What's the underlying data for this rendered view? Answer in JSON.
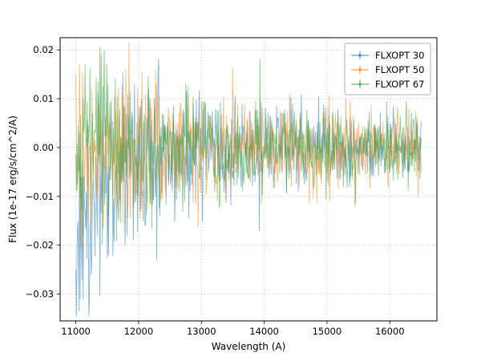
{
  "figure": {
    "background": "#ffffff"
  },
  "chart_data": {
    "type": "line",
    "title": "",
    "xlabel": "Wavelength (A)",
    "ylabel": "Flux (1e-17 erg/s/cm^2/A)",
    "xlim": [
      10750,
      16750
    ],
    "ylim": [
      -0.0355,
      0.0225
    ],
    "xticks": [
      11000,
      12000,
      13000,
      14000,
      15000,
      16000
    ],
    "yticks": [
      -0.03,
      -0.02,
      -0.01,
      0.0,
      0.01,
      0.02
    ],
    "grid": true,
    "grid_style": "dotted",
    "grid_color": "#b0b0b0",
    "legend_position": "upper right",
    "x_start": 11000,
    "x_end": 16500,
    "n_points": 560,
    "series": [
      {
        "name": "FLXOPT 30",
        "color": "#1f77b4",
        "seed": 11,
        "amp_start": 0.01,
        "amp_end": 0.003,
        "decay": 2.6,
        "neg_bias": 0.012,
        "spikes": [
          {
            "x": 11050,
            "y": -0.0335
          },
          {
            "x": 11100,
            "y": -0.027
          },
          {
            "x": 11250,
            "y": -0.026
          },
          {
            "x": 11500,
            "y": -0.0225
          },
          {
            "x": 12100,
            "y": -0.016
          },
          {
            "x": 12800,
            "y": -0.0145
          },
          {
            "x": 11350,
            "y": 0.011
          }
        ]
      },
      {
        "name": "FLXOPT 50",
        "color": "#ff7f0e",
        "seed": 52,
        "amp_start": 0.0085,
        "amp_end": 0.0035,
        "decay": 2.2,
        "neg_bias": 0,
        "spikes": [
          {
            "x": 11060,
            "y": 0.017
          },
          {
            "x": 11800,
            "y": 0.016
          },
          {
            "x": 12050,
            "y": 0.0155
          },
          {
            "x": 13350,
            "y": 0.0105
          },
          {
            "x": 14400,
            "y": 0.011
          },
          {
            "x": 16300,
            "y": 0.008
          },
          {
            "x": 16450,
            "y": -0.01
          }
        ]
      },
      {
        "name": "FLXOPT 67",
        "color": "#2ca02c",
        "seed": 67,
        "amp_start": 0.0085,
        "amp_end": 0.0028,
        "decay": 2.4,
        "neg_bias": 0,
        "spikes": [
          {
            "x": 11380,
            "y": 0.0205
          },
          {
            "x": 11150,
            "y": 0.017
          },
          {
            "x": 12150,
            "y": 0.0145
          },
          {
            "x": 13050,
            "y": 0.0095
          },
          {
            "x": 15450,
            "y": -0.012
          }
        ]
      }
    ]
  },
  "legend": {
    "entries": [
      {
        "label": "FLXOPT 30",
        "color": "#1f77b4"
      },
      {
        "label": "FLXOPT 50",
        "color": "#ff7f0e"
      },
      {
        "label": "FLXOPT 67",
        "color": "#2ca02c"
      }
    ]
  }
}
